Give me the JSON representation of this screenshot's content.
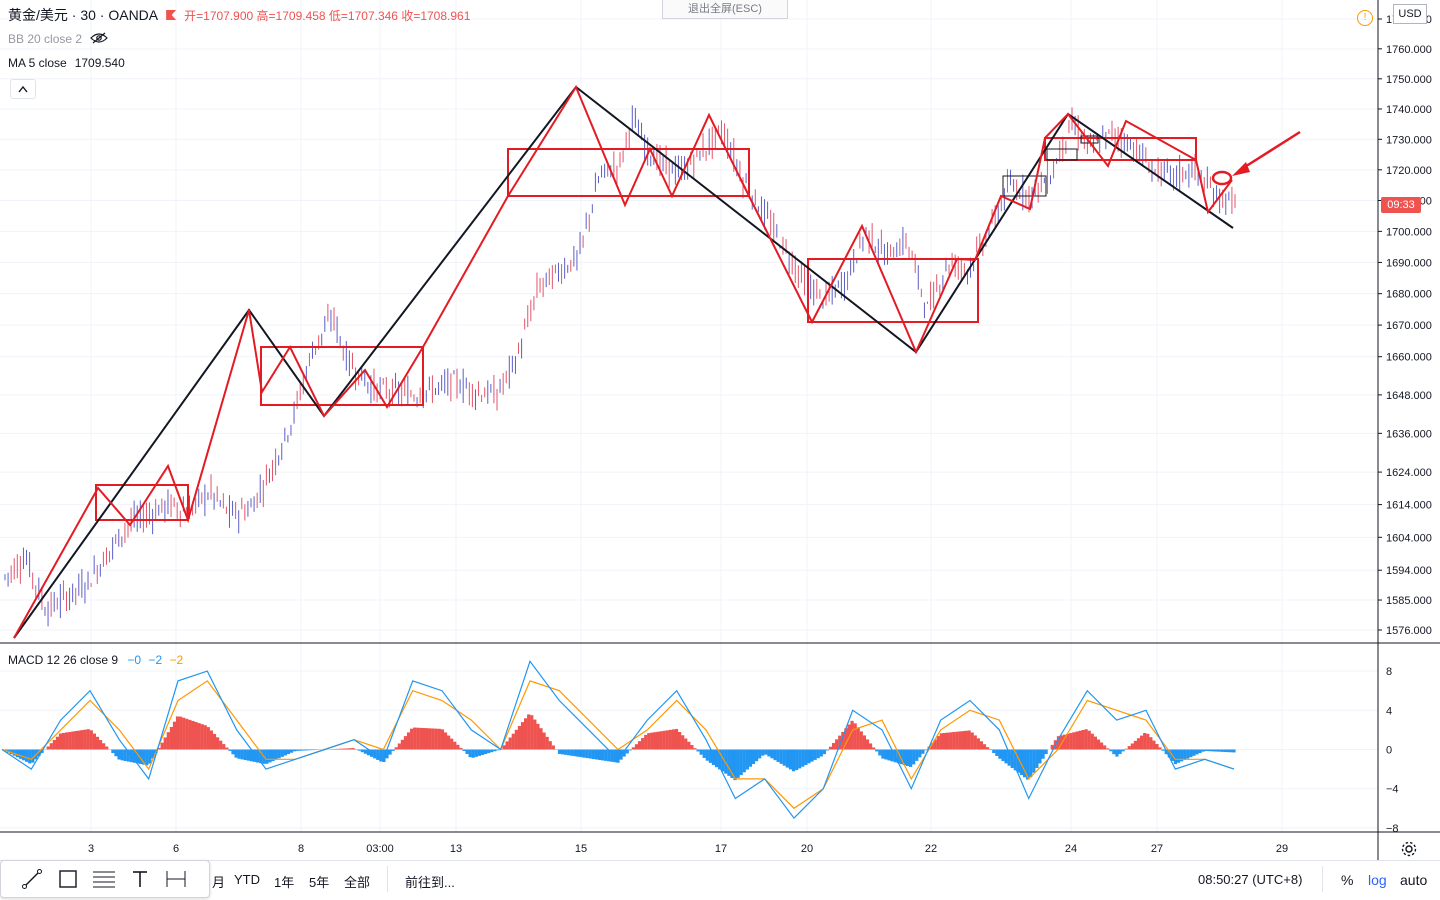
{
  "legend": {
    "symbol": "黄金/美元 · 30 · OANDA",
    "ohlc": "开=1707.900  高=1709.458  低=1707.346  收=1708.961",
    "bb_label": "BB 20 close 2",
    "ma_label": "MA 5 close",
    "ma_value": "1709.540",
    "macd_label": "MACD 12 26 close 9",
    "macd_v1": "−0",
    "macd_v2": "−2",
    "macd_v3": "−2",
    "collapse": "^"
  },
  "fullscreen_exit": "退出全屏(ESC)",
  "currency": "USD",
  "current_price_tag": "09:33",
  "colors": {
    "accent_red": "#ef5350",
    "macd_blue": "#2196f3",
    "macd_orange": "#ff9800",
    "line_black": "#131722"
  },
  "bottom_bar": {
    "partial_label": "月",
    "ranges": [
      "YTD",
      "1年",
      "5年",
      "全部"
    ],
    "goto": "前往到...",
    "time": "08:50:27 (UTC+8)",
    "percent": "%",
    "log": "log",
    "auto": "auto"
  },
  "drawing_tools": [
    "trendline-icon",
    "rectangle-icon",
    "fib-icon",
    "text-icon",
    "measure-icon"
  ],
  "chart_data": {
    "type": "line",
    "scale": "log",
    "price_axis": {
      "ticks": [
        1770,
        1760,
        1750,
        1740,
        1730,
        1720,
        1710,
        1700,
        1690,
        1680,
        1670,
        1660,
        1648,
        1636,
        1624,
        1614,
        1604,
        1594,
        1585,
        1576
      ],
      "labels": [
        "1770.000",
        "1760.000",
        "1750.000",
        "1740.000",
        "1730.000",
        "1720.000",
        "1710.000",
        "1700.000",
        "1690.000",
        "1680.000",
        "1670.000",
        "1660.000",
        "1648.000",
        "1636.000",
        "1624.000",
        "1614.000",
        "1604.000",
        "1594.000",
        "1585.000",
        "1576.000"
      ]
    },
    "macd_axis": {
      "ticks": [
        8,
        4,
        0,
        -4,
        -8
      ],
      "labels": [
        "8",
        "4",
        "0",
        "−4",
        "−8"
      ]
    },
    "time_axis": {
      "labels": [
        "3",
        "6",
        "8",
        "03:00",
        "13",
        "15",
        "17",
        "20",
        "22",
        "24",
        "27",
        "29"
      ]
    },
    "price_path": [
      [
        0,
        1592
      ],
      [
        0.5,
        1598
      ],
      [
        1,
        1582
      ],
      [
        2,
        1590
      ],
      [
        3,
        1608
      ],
      [
        4,
        1614
      ],
      [
        4.5,
        1612
      ],
      [
        5,
        1618
      ],
      [
        5.5,
        1611
      ],
      [
        6,
        1613
      ],
      [
        6.5,
        1625
      ],
      [
        7,
        1640
      ],
      [
        7.5,
        1662
      ],
      [
        8,
        1673
      ],
      [
        8.3,
        1660
      ],
      [
        8.6,
        1655
      ],
      [
        9,
        1650
      ],
      [
        9.5,
        1649
      ],
      [
        10,
        1648
      ],
      [
        10.5,
        1650
      ],
      [
        11,
        1652
      ],
      [
        11.5,
        1649
      ],
      [
        12,
        1648
      ],
      [
        12.5,
        1660
      ],
      [
        13,
        1682
      ],
      [
        13.5,
        1687
      ],
      [
        14,
        1692
      ],
      [
        14.5,
        1718
      ],
      [
        15,
        1722
      ],
      [
        15.3,
        1737
      ],
      [
        15.6,
        1728
      ],
      [
        16,
        1722
      ],
      [
        16.5,
        1719
      ],
      [
        17,
        1726
      ],
      [
        17.5,
        1733
      ],
      [
        18,
        1717
      ],
      [
        18.5,
        1706
      ],
      [
        19,
        1695
      ],
      [
        19.5,
        1684
      ],
      [
        20,
        1678
      ],
      [
        20.5,
        1684
      ],
      [
        21,
        1700
      ],
      [
        21.5,
        1692
      ],
      [
        22,
        1697
      ],
      [
        22.5,
        1675
      ],
      [
        23,
        1690
      ],
      [
        23.5,
        1688
      ],
      [
        24,
        1700
      ],
      [
        24.5,
        1715
      ],
      [
        25,
        1712
      ],
      [
        25.5,
        1718
      ],
      [
        26,
        1735
      ],
      [
        26.5,
        1727
      ],
      [
        27,
        1732
      ],
      [
        27.5,
        1728
      ],
      [
        28,
        1720
      ],
      [
        28.5,
        1718
      ],
      [
        29,
        1720
      ],
      [
        29.5,
        1712
      ],
      [
        30,
        1709
      ]
    ],
    "black_zigzag": [
      [
        0.3,
        1575
      ],
      [
        7.8,
        1666
      ],
      [
        10.3,
        1651
      ],
      [
        18,
        1742
      ],
      [
        26,
        1666
      ],
      [
        30.5,
        1737
      ],
      [
        33.5,
        1703
      ]
    ],
    "red_zigzag": [
      [
        0.3,
        1575
      ],
      [
        7.5,
        1666
      ],
      [
        9,
        1655
      ],
      [
        10.2,
        1651
      ],
      [
        12,
        1661
      ],
      [
        13,
        1650
      ],
      [
        14,
        1662
      ],
      [
        17.5,
        1743
      ]
    ],
    "red_boxes": [
      {
        "t0": 2.4,
        "t1": 4.6,
        "p_hi": 1620,
        "p_lo": 1610
      },
      {
        "t0": 6.3,
        "t1": 10.2,
        "p_hi": 1662,
        "p_lo": 1645
      },
      {
        "t0": 12.2,
        "t1": 18.0,
        "p_hi": 1727,
        "p_lo": 1711
      },
      {
        "t0": 19.4,
        "t1": 23.5,
        "p_hi": 1691,
        "p_lo": 1671
      },
      {
        "t0": 25.1,
        "t1": 28.7,
        "p_hi": 1731,
        "p_lo": 1724
      }
    ],
    "macd_line": [
      0,
      -2,
      3,
      6,
      1,
      -3,
      7,
      8,
      2,
      -2,
      -1,
      0,
      1,
      -1,
      7,
      6,
      2,
      0,
      9,
      5,
      2,
      -1,
      3,
      6,
      1,
      -5,
      -3,
      -7,
      -4,
      4,
      2,
      -4,
      3,
      5,
      2,
      -5,
      1,
      6,
      3,
      4,
      -2,
      -1,
      -2
    ],
    "signal_line": [
      0,
      -1,
      2,
      5,
      2,
      -2,
      5,
      7,
      3,
      -1,
      -1,
      0,
      1,
      0,
      6,
      5,
      3,
      0,
      7,
      6,
      3,
      0,
      2,
      5,
      2,
      -3,
      -3,
      -6,
      -4,
      2,
      3,
      -3,
      2,
      4,
      3,
      -3,
      0,
      5,
      4,
      3,
      -1,
      -1,
      -2
    ]
  }
}
